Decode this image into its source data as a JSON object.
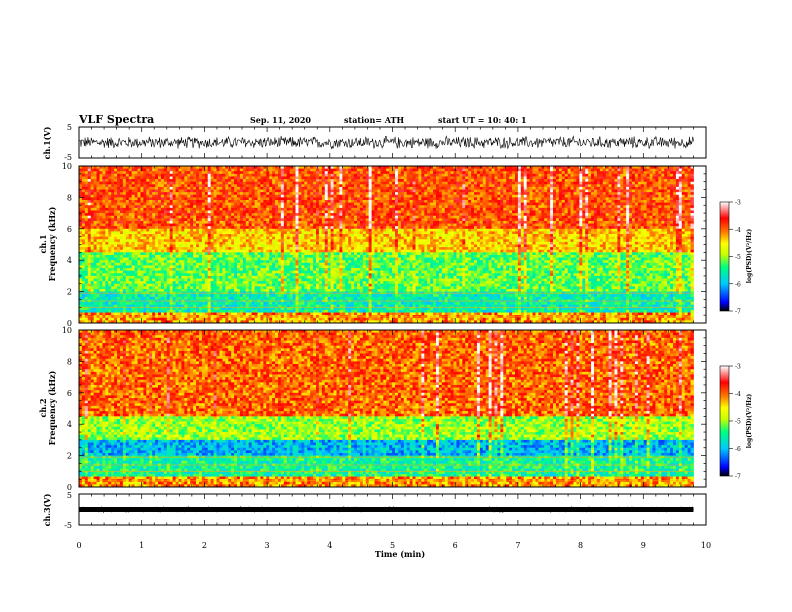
{
  "header": {
    "title": "VLF Spectra",
    "date": "Sep. 11, 2020",
    "station": "station= ATH",
    "start": "start  UT  =   10: 40: 1"
  },
  "panels": {
    "ch1_wave_label": "ch.1(V)",
    "ch1_spec_label1": "ch.1",
    "ch1_spec_label2": "Frequency  (kHz)",
    "ch2_spec_label1": "ch.2",
    "ch2_spec_label2": "Frequency  (kHz)",
    "ch3_wave_label": "ch.3(V)",
    "xlabel": "Time  (min)",
    "colorbar_label": "log(PSD)(V²/Hz)"
  },
  "chart_data": [
    {
      "type": "line",
      "name": "ch1-waveform",
      "ylabel": "ch.1(V)",
      "xlim": [
        0,
        10
      ],
      "ylim": [
        -5,
        5
      ],
      "yticks": [
        "5",
        "-5"
      ],
      "data_x_extent": [
        0,
        9.8
      ],
      "amplitude_range": [
        -2.2,
        2.2
      ],
      "note_values": "noisy broadband signal around 0 V"
    },
    {
      "type": "heatmap",
      "name": "ch1-spectrogram",
      "ylabel": "Frequency  (kHz)",
      "xlim": [
        0,
        10
      ],
      "ylim": [
        0,
        10
      ],
      "yticks": [
        "0",
        "2",
        "4",
        "6",
        "8",
        "10"
      ],
      "data_x_extent": [
        0,
        9.8
      ],
      "bands_khz": [
        {
          "from": 0.0,
          "to": 2.0,
          "level": -5.6
        },
        {
          "from": 2.0,
          "to": 4.5,
          "level": -5.2
        },
        {
          "from": 4.5,
          "to": 6.0,
          "level": -4.4
        },
        {
          "from": 6.0,
          "to": 10.0,
          "level": -3.9
        }
      ],
      "colorbar": {
        "min": -7,
        "max": -3,
        "ticks": [
          "-3",
          "-4",
          "-5",
          "-6",
          "-7"
        ],
        "label": "log(PSD)(V²/Hz)"
      }
    },
    {
      "type": "heatmap",
      "name": "ch2-spectrogram",
      "ylabel": "Frequency  (kHz)",
      "xlim": [
        0,
        10
      ],
      "ylim": [
        0,
        10
      ],
      "yticks": [
        "0",
        "2",
        "4",
        "6",
        "8",
        "10"
      ],
      "data_x_extent": [
        0,
        9.8
      ],
      "bands_khz": [
        {
          "from": 0.0,
          "to": 2.0,
          "level": -5.5
        },
        {
          "from": 2.0,
          "to": 3.0,
          "level": -6.0
        },
        {
          "from": 3.0,
          "to": 4.5,
          "level": -5.0
        },
        {
          "from": 4.5,
          "to": 10.0,
          "level": -4.0
        }
      ],
      "colorbar": {
        "min": -7,
        "max": -3,
        "ticks": [
          "-3",
          "-4",
          "-5",
          "-6",
          "-7"
        ],
        "label": "log(PSD)(V²/Hz)"
      }
    },
    {
      "type": "line",
      "name": "ch3-waveform",
      "ylabel": "ch.3(V)",
      "xlim": [
        0,
        10
      ],
      "ylim": [
        -5,
        5
      ],
      "yticks": [
        "5",
        "-5"
      ],
      "data_x_extent": [
        0,
        9.8
      ],
      "amplitude_range": [
        -0.3,
        0.3
      ],
      "xlabel": "Time  (min)",
      "xticks": [
        "0",
        "1",
        "2",
        "3",
        "4",
        "5",
        "6",
        "7",
        "8",
        "9",
        "10"
      ]
    }
  ],
  "colors": {
    "scale": [
      "#000000",
      "#0000ff",
      "#00c8ff",
      "#00ff7f",
      "#c8ff00",
      "#ffff00",
      "#ff7f00",
      "#ff0000",
      "#ffffff"
    ]
  }
}
